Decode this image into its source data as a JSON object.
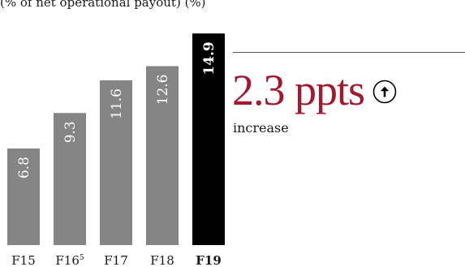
{
  "header": {
    "caption": "(% of net operational payout) (%)"
  },
  "chart_data": {
    "type": "bar",
    "categories": [
      "F15",
      "F16",
      "F17",
      "F18",
      "F19"
    ],
    "category_superscripts": [
      "",
      "5",
      "",
      "",
      ""
    ],
    "values": [
      6.8,
      9.3,
      11.6,
      12.6,
      14.9
    ],
    "value_labels": [
      "6.8",
      "9.3",
      "11.6",
      "12.6",
      "14.9"
    ],
    "highlight_index": 4,
    "bar_colors": {
      "default": "#858585",
      "highlight": "#000000"
    },
    "ylim": [
      0,
      16
    ],
    "title": "",
    "xlabel": "",
    "ylabel": ""
  },
  "stat": {
    "value": "2.3 ppts",
    "description": "increase",
    "icon": "arrow-up-circle-icon",
    "value_color": "#a3182d",
    "icon_color": "#000000"
  }
}
